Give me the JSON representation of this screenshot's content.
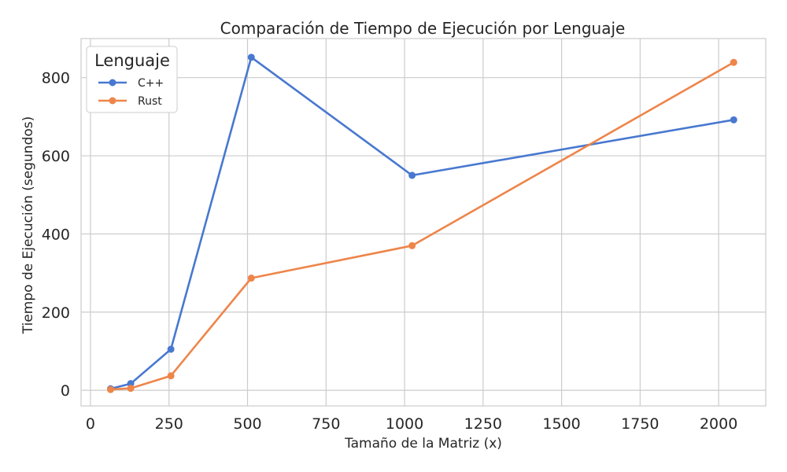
{
  "chart_data": {
    "type": "line",
    "title": "Comparación de Tiempo de Ejecución por Lenguaje",
    "xlabel": "Tamaño de la Matriz (x)",
    "ylabel": "Tiempo de Ejecución (segundos)",
    "xlim": [
      -30,
      2150
    ],
    "ylim": [
      -40,
      900
    ],
    "x_ticks": [
      0,
      250,
      500,
      750,
      1000,
      1250,
      1500,
      1750,
      2000
    ],
    "y_ticks": [
      0,
      200,
      400,
      600,
      800
    ],
    "grid": true,
    "legend": {
      "title": "Lenguaje",
      "placement": "top-left"
    },
    "x": [
      64,
      128,
      256,
      512,
      1024,
      2048
    ],
    "series": [
      {
        "name": "C++",
        "color": "#4878d0",
        "values": [
          4,
          17,
          105,
          852,
          550,
          692
        ]
      },
      {
        "name": "Rust",
        "color": "#ee854a",
        "values": [
          2,
          5,
          37,
          287,
          370,
          839
        ]
      }
    ]
  }
}
